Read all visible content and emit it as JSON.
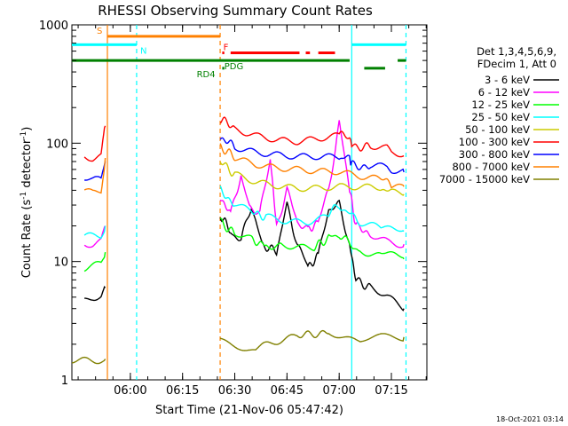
{
  "chart_data": {
    "type": "line",
    "title": "RHESSI Observing Summary Count Rates",
    "xlabel": "Start Time (21-Nov-06 05:47:42)",
    "ylabel_prefix": "Count Rate (s",
    "ylabel_suffix": " detector",
    "ylabel_close": ")",
    "ylabel_exp": "-1",
    "ylabel_exp2": "-1",
    "yscale": "log",
    "ylim": [
      1,
      1000
    ],
    "xlim": [
      5.72,
      7.42
    ],
    "x_ticks": [
      6.0,
      6.25,
      6.5,
      6.75,
      7.0,
      7.25
    ],
    "x_tick_labels": [
      "06:00",
      "06:15",
      "06:30",
      "06:45",
      "07:00",
      "07:15"
    ],
    "y_ticks": [
      1,
      10,
      100,
      1000
    ],
    "y_tick_labels": [
      "1",
      "10",
      "100",
      "1000"
    ],
    "legend_header": [
      "Det 1,3,4,5,6,9,",
      "FDecim 1, Att 0"
    ],
    "timestamp": "18-Oct-2021 03:14",
    "series": [
      {
        "name": "3 - 6 keV",
        "color": "#000000",
        "segments": [
          [
            [
              5.78,
              4.5
            ],
            [
              5.82,
              4.8
            ],
            [
              5.86,
              5.0
            ],
            [
              5.88,
              6.0
            ]
          ],
          [
            [
              6.43,
              25
            ],
            [
              6.48,
              18
            ],
            [
              6.53,
              15
            ],
            [
              6.58,
              30
            ],
            [
              6.63,
              14
            ],
            [
              6.7,
              12
            ],
            [
              6.75,
              30
            ],
            [
              6.8,
              14
            ],
            [
              6.85,
              9
            ],
            [
              6.9,
              11
            ],
            [
              6.95,
              28
            ],
            [
              7.0,
              30
            ],
            [
              7.05,
              14
            ],
            [
              7.08,
              7.0
            ],
            [
              7.15,
              6.0
            ],
            [
              7.23,
              5.0
            ],
            [
              7.31,
              4.0
            ]
          ]
        ]
      },
      {
        "name": "6 - 12 keV",
        "color": "#ff00ff",
        "segments": [
          [
            [
              5.78,
              14
            ],
            [
              5.82,
              14
            ],
            [
              5.86,
              15
            ],
            [
              5.88,
              20
            ]
          ],
          [
            [
              6.43,
              35
            ],
            [
              6.48,
              25
            ],
            [
              6.53,
              55
            ],
            [
              6.57,
              30
            ],
            [
              6.62,
              25
            ],
            [
              6.67,
              75
            ],
            [
              6.7,
              20
            ],
            [
              6.75,
              40
            ],
            [
              6.8,
              22
            ],
            [
              6.85,
              18
            ],
            [
              6.9,
              22
            ],
            [
              6.95,
              40
            ],
            [
              7.0,
              150
            ],
            [
              7.05,
              40
            ],
            [
              7.08,
              20
            ],
            [
              7.15,
              17
            ],
            [
              7.23,
              15
            ],
            [
              7.31,
              14
            ]
          ]
        ]
      },
      {
        "name": "12 - 25 keV",
        "color": "#00ff00",
        "segments": [
          [
            [
              5.78,
              9
            ],
            [
              5.82,
              9.5
            ],
            [
              5.86,
              10
            ],
            [
              5.88,
              12
            ]
          ],
          [
            [
              6.43,
              22
            ],
            [
              6.5,
              17
            ],
            [
              6.58,
              15
            ],
            [
              6.65,
              14
            ],
            [
              6.72,
              13.5
            ],
            [
              6.8,
              13
            ],
            [
              6.88,
              13
            ],
            [
              6.95,
              16
            ],
            [
              7.0,
              17
            ],
            [
              7.05,
              14
            ],
            [
              7.1,
              12.5
            ],
            [
              7.2,
              11.5
            ],
            [
              7.31,
              10.5
            ]
          ]
        ]
      },
      {
        "name": "25 - 50 keV",
        "color": "#00ffff",
        "segments": [
          [
            [
              5.78,
              17
            ],
            [
              5.82,
              17
            ],
            [
              5.86,
              17
            ],
            [
              5.88,
              20
            ]
          ],
          [
            [
              6.43,
              40
            ],
            [
              6.5,
              30
            ],
            [
              6.58,
              26
            ],
            [
              6.65,
              24
            ],
            [
              6.75,
              22
            ],
            [
              6.85,
              22
            ],
            [
              6.95,
              25
            ],
            [
              7.0,
              30
            ],
            [
              7.05,
              25
            ],
            [
              7.1,
              22
            ],
            [
              7.2,
              20
            ],
            [
              7.31,
              18
            ]
          ]
        ]
      },
      {
        "name": "50 - 100 keV",
        "color": "#cccc00",
        "segments": [
          [
            [
              6.43,
              70
            ],
            [
              6.5,
              55
            ],
            [
              6.6,
              48
            ],
            [
              6.7,
              45
            ],
            [
              6.8,
              43
            ],
            [
              6.9,
              43
            ],
            [
              7.0,
              44
            ],
            [
              7.1,
              43
            ],
            [
              7.2,
              42
            ],
            [
              7.25,
              38
            ],
            [
              7.31,
              37
            ]
          ]
        ]
      },
      {
        "name": "100 - 300 keV",
        "color": "#ff0000",
        "segments": [
          [
            [
              5.78,
              75
            ],
            [
              5.82,
              72
            ],
            [
              5.86,
              75
            ],
            [
              5.88,
              140
            ]
          ],
          [
            [
              6.43,
              160
            ],
            [
              6.5,
              135
            ],
            [
              6.6,
              120
            ],
            [
              6.7,
              110
            ],
            [
              6.8,
              105
            ],
            [
              6.9,
              110
            ],
            [
              7.0,
              115
            ],
            [
              7.05,
              115
            ],
            [
              7.06,
              95
            ],
            [
              7.15,
              92
            ],
            [
              7.23,
              88
            ],
            [
              7.25,
              80
            ],
            [
              7.31,
              78
            ]
          ]
        ]
      },
      {
        "name": "300 - 800 keV",
        "color": "#0000ff",
        "segments": [
          [
            [
              5.78,
              50
            ],
            [
              5.82,
              48
            ],
            [
              5.86,
              48
            ],
            [
              5.88,
              70
            ]
          ],
          [
            [
              6.43,
              110
            ],
            [
              6.5,
              95
            ],
            [
              6.6,
              85
            ],
            [
              6.7,
              80
            ],
            [
              6.8,
              76
            ],
            [
              6.9,
              75
            ],
            [
              7.0,
              74
            ],
            [
              7.05,
              74
            ],
            [
              7.06,
              65
            ],
            [
              7.15,
              63
            ],
            [
              7.23,
              62
            ],
            [
              7.25,
              58
            ],
            [
              7.31,
              57
            ]
          ]
        ]
      },
      {
        "name": "800 - 7000 keV",
        "color": "#ff8000",
        "segments": [
          [
            [
              5.78,
              40
            ],
            [
              5.82,
              38
            ],
            [
              5.86,
              40
            ],
            [
              5.88,
              75
            ]
          ],
          [
            [
              6.43,
              95
            ],
            [
              6.5,
              75
            ],
            [
              6.6,
              65
            ],
            [
              6.7,
              60
            ],
            [
              6.8,
              58
            ],
            [
              6.9,
              56
            ],
            [
              7.0,
              56
            ],
            [
              7.1,
              52
            ],
            [
              7.2,
              50
            ],
            [
              7.25,
              44
            ],
            [
              7.31,
              43
            ]
          ]
        ]
      },
      {
        "name": "7000 - 15000 keV",
        "color": "#808000",
        "segments": [
          [
            [
              5.72,
              1.5
            ],
            [
              5.88,
              1.5
            ]
          ],
          [
            [
              6.43,
              2.2
            ],
            [
              6.6,
              1.8
            ],
            [
              6.8,
              2.3
            ],
            [
              6.95,
              2.6
            ],
            [
              7.1,
              2.2
            ],
            [
              7.31,
              2.3
            ]
          ]
        ]
      }
    ],
    "status_bars": [
      {
        "label": "S",
        "color": "#ff8000",
        "y": 800,
        "ranges": [
          [
            5.89,
            6.43
          ]
        ]
      },
      {
        "label": "N",
        "color": "#00ffff",
        "y": 680,
        "ranges": [
          [
            5.72,
            6.03
          ],
          [
            7.06,
            7.32
          ]
        ]
      },
      {
        "label": "F",
        "color": "#ff0000",
        "y": 580,
        "ranges": [
          [
            6.44,
            6.45
          ],
          [
            6.48,
            6.81
          ],
          [
            6.84,
            6.86
          ],
          [
            6.9,
            6.98
          ]
        ]
      },
      {
        "label": "PDG",
        "color": "#008000",
        "y": 500,
        "ranges": [
          [
            5.72,
            7.05
          ],
          [
            7.28,
            7.32
          ]
        ]
      },
      {
        "label": "RD4",
        "color": "#008000",
        "y": 430,
        "ranges": [
          [
            7.12,
            7.22
          ],
          [
            6.44,
            6.45
          ]
        ]
      }
    ],
    "vertical_markers": [
      {
        "x": 5.89,
        "color": "#ff8000",
        "style": "solid"
      },
      {
        "x": 6.03,
        "color": "#00ffff",
        "style": "dashed"
      },
      {
        "x": 6.43,
        "color": "#ff8000",
        "style": "dashed"
      },
      {
        "x": 7.06,
        "color": "#00ffff",
        "style": "solid"
      },
      {
        "x": 7.32,
        "color": "#00ffff",
        "style": "dashed"
      }
    ]
  }
}
